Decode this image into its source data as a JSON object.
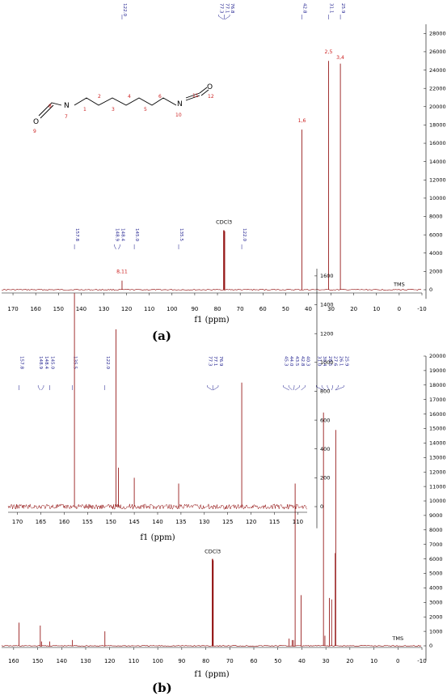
{
  "panel_labels": {
    "a": "(a)",
    "b": "(b)"
  },
  "molecule": {
    "atoms": {
      "N1": "N",
      "N2": "N",
      "O1": "O",
      "O2": "O"
    },
    "numbers": [
      "1",
      "2",
      "3",
      "4",
      "5",
      "6",
      "7",
      "8",
      "9",
      "10",
      "11",
      "12"
    ]
  },
  "chart_data": [
    {
      "type": "line",
      "panel": "(a)",
      "xlabel": "f1 (ppm)",
      "xlim": [
        175,
        -10
      ],
      "x_ticks": [
        170,
        160,
        150,
        140,
        130,
        120,
        110,
        100,
        90,
        80,
        70,
        60,
        50,
        40,
        30,
        20,
        10,
        0,
        -10
      ],
      "ylim": [
        -1000,
        29000
      ],
      "y_ticks": [
        0,
        2000,
        4000,
        6000,
        8000,
        10000,
        12000,
        14000,
        16000,
        18000,
        20000,
        22000,
        24000,
        26000,
        28000
      ],
      "color": "#8b0000",
      "peaks": [
        {
          "ppm": 122.0,
          "height": 1000
        },
        {
          "ppm": 77.3,
          "height": 6500
        },
        {
          "ppm": 77.1,
          "height": 6500
        },
        {
          "ppm": 76.8,
          "height": 6400
        },
        {
          "ppm": 42.8,
          "height": 17500
        },
        {
          "ppm": 31.1,
          "height": 25000
        },
        {
          "ppm": 25.9,
          "height": 24700
        }
      ],
      "peak_labels": [
        "122.0",
        "77.3",
        "77.1",
        "76.8",
        "42.8",
        "31.1",
        "25.9"
      ],
      "annotations": [
        {
          "text": "CDCl3",
          "ppm": 77.1,
          "y": 7200
        },
        {
          "text": "TMS",
          "ppm": 0,
          "y": 400
        }
      ],
      "assignments": [
        {
          "text": "8,11",
          "ppm": 122.0,
          "y": 1800
        },
        {
          "text": "1,6",
          "ppm": 42.8,
          "y": 18300
        },
        {
          "text": "2,5",
          "ppm": 31.1,
          "y": 25800
        },
        {
          "text": "3,4",
          "ppm": 25.9,
          "y": 25200
        }
      ]
    },
    {
      "type": "line",
      "panel": "(b)",
      "xlabel": "f1 (ppm)",
      "xlim": [
        165,
        -10
      ],
      "x_ticks": [
        160,
        150,
        140,
        130,
        120,
        110,
        100,
        90,
        80,
        70,
        60,
        50,
        40,
        30,
        20,
        10,
        0,
        -10
      ],
      "ylim": [
        -1000,
        20000
      ],
      "y_ticks": [
        0,
        1000,
        2000,
        3000,
        4000,
        5000,
        6000,
        7000,
        8000,
        9000,
        10000,
        11000,
        12000,
        13000,
        14000,
        15000,
        16000,
        17000,
        18000,
        19000,
        20000
      ],
      "color": "#8b0000",
      "peaks": [
        {
          "ppm": 157.8,
          "height": 1600
        },
        {
          "ppm": 148.9,
          "height": 1400
        },
        {
          "ppm": 148.4,
          "height": 300
        },
        {
          "ppm": 145.0,
          "height": 300
        },
        {
          "ppm": 135.5,
          "height": 400
        },
        {
          "ppm": 122.0,
          "height": 1000
        },
        {
          "ppm": 77.3,
          "height": 6000
        },
        {
          "ppm": 77.1,
          "height": 6000
        },
        {
          "ppm": 76.9,
          "height": 5900
        },
        {
          "ppm": 45.3,
          "height": 500
        },
        {
          "ppm": 44.0,
          "height": 400
        },
        {
          "ppm": 43.5,
          "height": 400
        },
        {
          "ppm": 42.8,
          "height": 11200
        },
        {
          "ppm": 40.3,
          "height": 3500
        },
        {
          "ppm": 31.0,
          "height": 16100
        },
        {
          "ppm": 30.4,
          "height": 700
        },
        {
          "ppm": 28.5,
          "height": 3300
        },
        {
          "ppm": 27.6,
          "height": 3200
        },
        {
          "ppm": 26.1,
          "height": 6400
        },
        {
          "ppm": 25.9,
          "height": 14900
        }
      ],
      "peak_labels": [
        "157.8",
        "148.9",
        "148.4",
        "145.0",
        "135.5",
        "122.0",
        "77.3",
        "77.1",
        "76.9",
        "45.3",
        "44.0",
        "43.5",
        "42.8",
        "40.3",
        "31.0",
        "30.4",
        "28.5",
        "27.6",
        "26.1",
        "25.9"
      ],
      "annotations": [
        {
          "text": "CDCl3",
          "ppm": 77.1,
          "y": 6400
        },
        {
          "text": "TMS",
          "ppm": 0,
          "y": 400
        }
      ]
    },
    {
      "type": "line",
      "panel": "(b) inset",
      "xlabel": "f1 (ppm)",
      "xlim": [
        172,
        108
      ],
      "x_ticks": [
        170,
        165,
        160,
        155,
        150,
        145,
        140,
        135,
        130,
        125,
        120,
        115,
        110
      ],
      "ylim": [
        -150,
        1650
      ],
      "y_ticks": [
        0,
        200,
        400,
        600,
        800,
        1000,
        1200,
        1400,
        1600
      ],
      "color": "#8b0000",
      "peaks": [
        {
          "ppm": 157.8,
          "height": 1480
        },
        {
          "ppm": 148.9,
          "height": 1230
        },
        {
          "ppm": 148.4,
          "height": 270
        },
        {
          "ppm": 145.0,
          "height": 200
        },
        {
          "ppm": 135.5,
          "height": 160
        },
        {
          "ppm": 122.0,
          "height": 860
        }
      ],
      "peak_labels": [
        "157.8",
        "148.9",
        "148.4",
        "145.0",
        "135.5",
        "122.0"
      ]
    }
  ]
}
